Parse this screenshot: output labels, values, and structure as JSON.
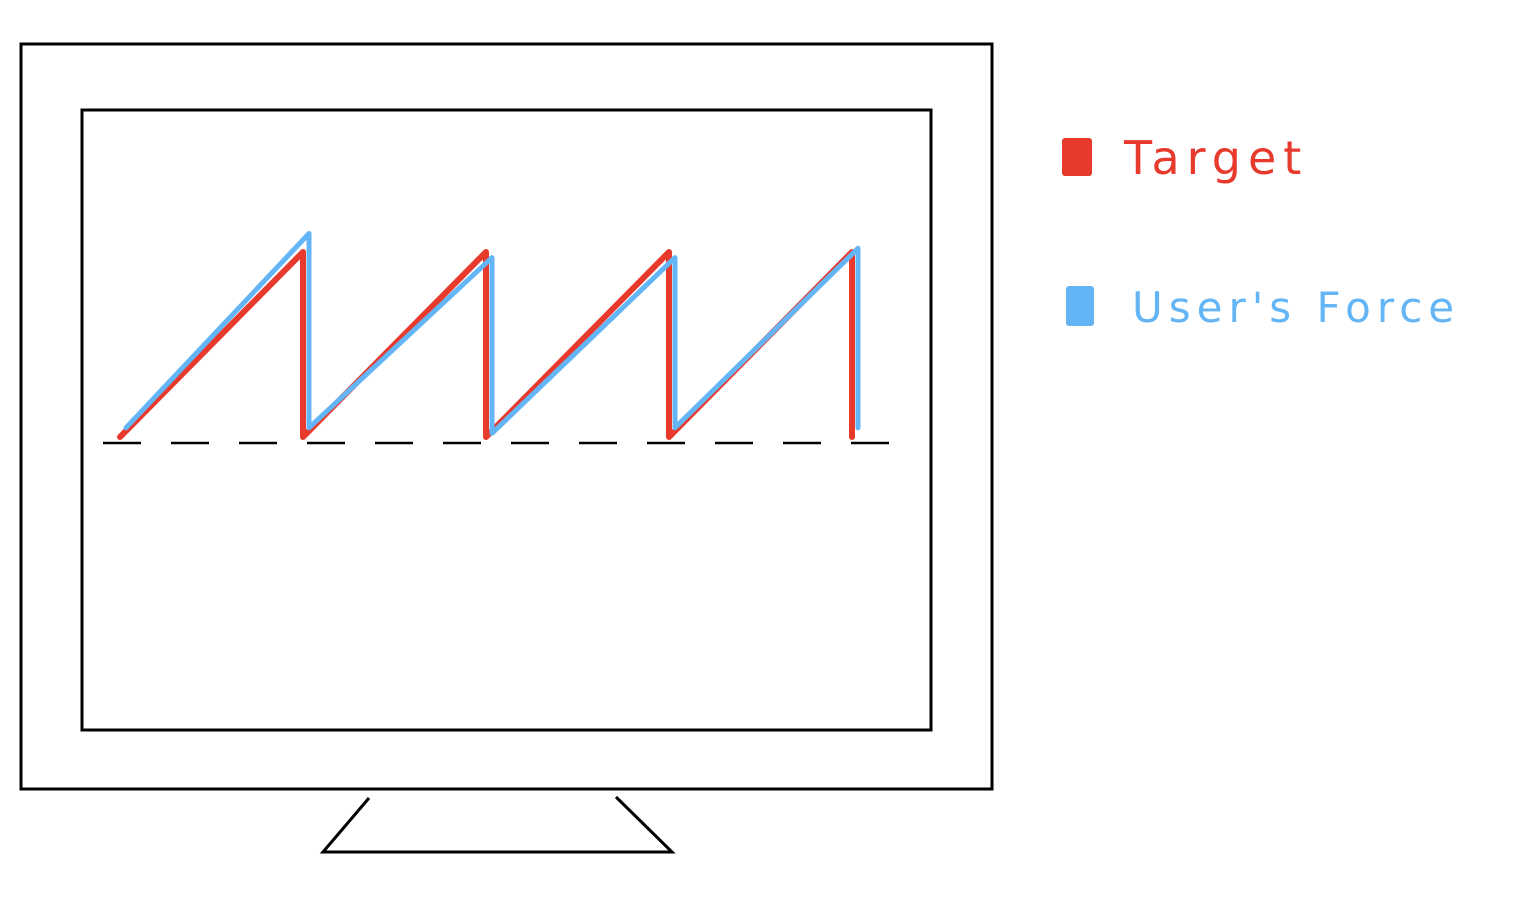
{
  "colors": {
    "target": "#e8392d",
    "user_force": "#64b5f6",
    "outline": "#000000",
    "background": "#ffffff"
  },
  "legend": {
    "items": [
      {
        "label": "Target",
        "color": "#e8392d"
      },
      {
        "label": "User's Force",
        "color": "#64b5f6"
      }
    ]
  },
  "chart_data": {
    "type": "line",
    "title": "",
    "xlabel": "",
    "ylabel": "",
    "baseline": "dashed",
    "grid": false,
    "legend_position": "right",
    "x": [
      0,
      1,
      1,
      2,
      2,
      3,
      3,
      4,
      4
    ],
    "series": [
      {
        "name": "Target",
        "values": [
          0,
          1,
          0,
          1,
          0,
          1,
          0,
          1,
          0
        ]
      },
      {
        "name": "User's Force",
        "values": [
          0.05,
          1.1,
          0.05,
          0.97,
          0.02,
          0.97,
          0.05,
          1.02,
          0.05
        ]
      }
    ]
  }
}
